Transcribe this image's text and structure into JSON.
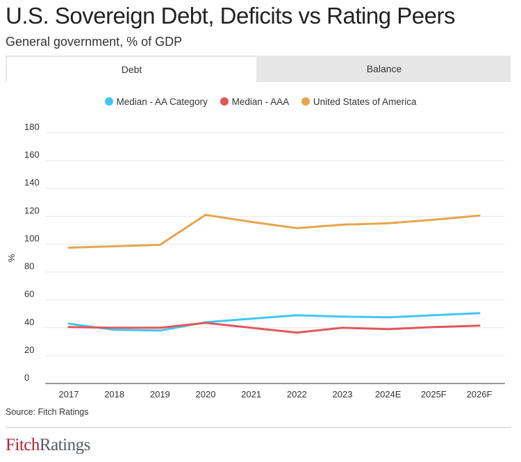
{
  "header": {
    "title": "U.S. Sovereign Debt, Deficits vs Rating Peers",
    "subtitle": "General government, % of GDP"
  },
  "tabs": [
    {
      "label": "Debt",
      "active": true
    },
    {
      "label": "Balance",
      "active": false
    }
  ],
  "footer": {
    "source": "Source: Fitch Ratings",
    "logo_part1": "Fitch",
    "logo_part2": "Ratings"
  },
  "chart_data": {
    "type": "line",
    "title": "",
    "xlabel": "",
    "ylabel": "%",
    "ylim": [
      0,
      180
    ],
    "yticks": [
      0,
      20,
      40,
      60,
      80,
      100,
      120,
      140,
      160,
      180
    ],
    "grid": true,
    "legend_position": "top",
    "categories": [
      "2017",
      "2018",
      "2019",
      "2020",
      "2021",
      "2022",
      "2023",
      "2024E",
      "2025F",
      "2026F"
    ],
    "series": [
      {
        "name": "Median - AA Category",
        "color": "#41c6f2",
        "values": [
          43,
          38.5,
          38,
          44,
          46.5,
          49,
          48,
          47.5,
          49,
          50.5
        ]
      },
      {
        "name": "Median - AAA",
        "color": "#e0585a",
        "values": [
          40.5,
          40,
          40,
          43.5,
          40,
          36.5,
          40,
          39,
          40.5,
          41.5
        ]
      },
      {
        "name": "United States of America",
        "color": "#e6a54e",
        "values": [
          97.5,
          98.5,
          99.5,
          121,
          116,
          111.5,
          114,
          115,
          117.5,
          120.5
        ]
      }
    ]
  }
}
